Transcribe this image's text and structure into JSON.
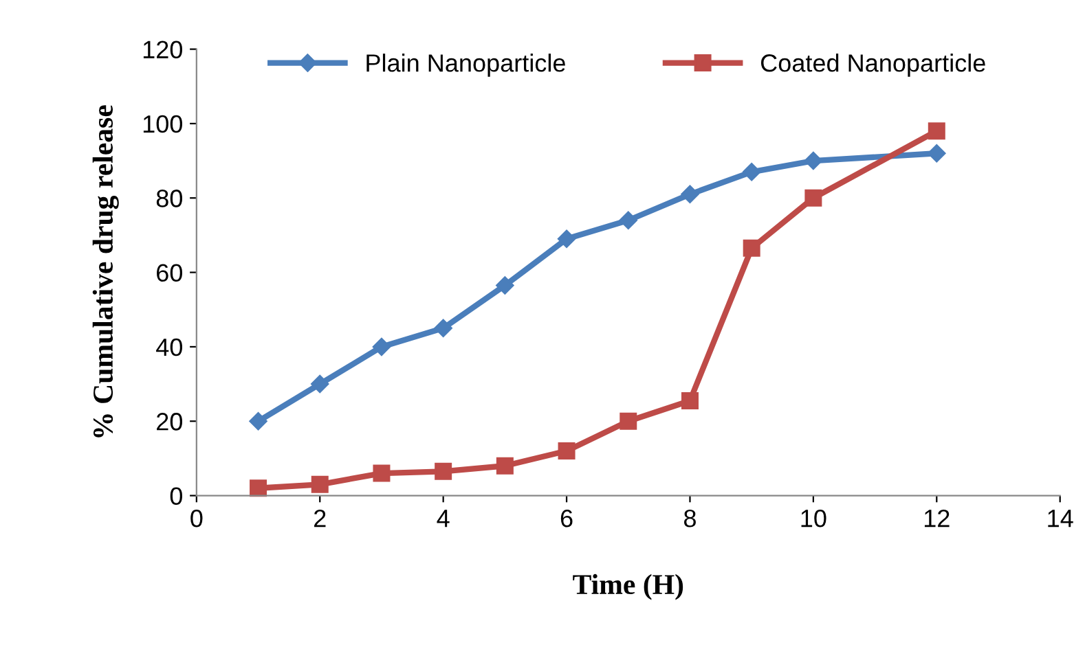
{
  "chart_data": {
    "type": "line",
    "xlabel": "Time (H)",
    "ylabel": "% Cumulative drug release",
    "x": [
      1,
      2,
      3,
      4,
      5,
      6,
      7,
      8,
      9,
      10,
      12
    ],
    "series": [
      {
        "name": "Plain Nanoparticle",
        "color": "#4a7ebb",
        "marker": "diamond",
        "values": [
          20,
          30,
          40,
          45,
          56.5,
          69,
          74,
          81,
          87,
          90,
          92
        ]
      },
      {
        "name": "Coated Nanoparticle",
        "color": "#be4b48",
        "marker": "square",
        "values": [
          2,
          3,
          6,
          6.5,
          8,
          12,
          20,
          25.5,
          66.5,
          80,
          98
        ]
      }
    ],
    "xlim": [
      0,
      14
    ],
    "xticks": [
      0,
      2,
      4,
      6,
      8,
      10,
      12,
      14
    ],
    "ylim": [
      0,
      120
    ],
    "yticks": [
      0,
      20,
      40,
      60,
      80,
      100,
      120
    ],
    "grid": false,
    "legend": "top",
    "line_style": "solid"
  }
}
